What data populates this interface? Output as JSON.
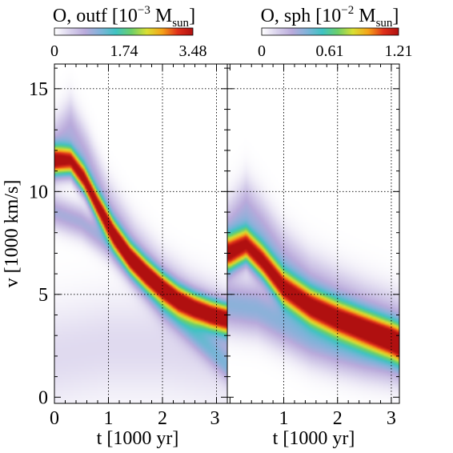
{
  "chart_data": [
    {
      "type": "heatmap",
      "title_main": "O, outf [10",
      "title_exp": "−3",
      "title_mid": " M",
      "title_sub": "sun",
      "title_end": "]",
      "colorbar_ticks": [
        "0",
        "1.74",
        "3.48"
      ],
      "colorbar_range": [
        0,
        3.48
      ],
      "xlabel": "t [1000 yr]",
      "ylabel": "v [1000 km/s]",
      "xlim": [
        0,
        3.2
      ],
      "ylim": [
        -0.3,
        16.2
      ],
      "x_ticks": [
        0,
        1,
        2,
        3
      ],
      "x_tick_labels": [
        "0",
        "1",
        "2",
        "3"
      ],
      "y_ticks": [
        0,
        5,
        10,
        15
      ],
      "y_tick_labels": [
        "0",
        "5",
        "10",
        "15"
      ],
      "grid_x": [
        1,
        2,
        3
      ],
      "grid_y": [
        5,
        10,
        15
      ],
      "ridges": [
        {
          "name": "main",
          "strength": 1.0,
          "width": 0.45,
          "points": [
            [
              0.3,
              11.5
            ],
            [
              0.55,
              10.6
            ],
            [
              0.8,
              9.3
            ],
            [
              1.1,
              7.9
            ],
            [
              1.4,
              6.8
            ],
            [
              1.7,
              6.0
            ],
            [
              2.0,
              5.3
            ],
            [
              2.3,
              4.7
            ],
            [
              2.6,
              4.3
            ],
            [
              2.9,
              4.0
            ],
            [
              3.2,
              3.8
            ]
          ]
        },
        {
          "name": "upper",
          "strength": 0.18,
          "width": 0.9,
          "points": [
            [
              0.0,
              12.0
            ],
            [
              0.3,
              13.0
            ],
            [
              0.6,
              11.5
            ],
            [
              1.0,
              9.0
            ],
            [
              1.5,
              7.0
            ],
            [
              2.0,
              5.5
            ],
            [
              2.5,
              4.5
            ],
            [
              3.0,
              3.8
            ],
            [
              3.2,
              3.5
            ]
          ]
        },
        {
          "name": "lower",
          "strength": 0.2,
          "width": 0.5,
          "points": [
            [
              0.0,
              9.0
            ],
            [
              0.5,
              8.5
            ],
            [
              1.0,
              7.5
            ],
            [
              1.5,
              6.0
            ],
            [
              2.0,
              4.5
            ],
            [
              2.5,
              3.3
            ],
            [
              3.0,
              2.0
            ],
            [
              3.2,
              1.5
            ]
          ]
        },
        {
          "name": "bottom",
          "strength": 0.06,
          "width": 1.6,
          "points": [
            [
              0.0,
              2.0
            ],
            [
              1.0,
              2.5
            ],
            [
              2.0,
              2.5
            ],
            [
              3.2,
              2.0
            ]
          ]
        }
      ]
    },
    {
      "type": "heatmap",
      "title_main": "O, sph [10",
      "title_exp": "−2",
      "title_mid": " M",
      "title_sub": "sun",
      "title_end": "]",
      "colorbar_ticks": [
        "0",
        "0.61",
        "1.21"
      ],
      "colorbar_range": [
        0,
        1.21
      ],
      "xlabel": "t [1000 yr]",
      "ylabel": "",
      "xlim": [
        -0.05,
        3.15
      ],
      "ylim": [
        -0.3,
        16.2
      ],
      "x_ticks": [
        1,
        2,
        3
      ],
      "x_tick_labels": [
        "1",
        "2",
        "3"
      ],
      "y_ticks": [
        0,
        5,
        10,
        15
      ],
      "y_tick_labels": [],
      "grid_x": [
        1,
        2,
        3
      ],
      "grid_y": [
        5,
        10,
        15
      ],
      "ridges": [
        {
          "name": "main",
          "strength": 1.0,
          "width": 0.55,
          "points": [
            [
              0.0,
              7.0
            ],
            [
              0.3,
              7.4
            ],
            [
              0.6,
              6.6
            ],
            [
              1.0,
              5.3
            ],
            [
              1.5,
              4.4
            ],
            [
              2.0,
              3.8
            ],
            [
              2.5,
              3.3
            ],
            [
              3.0,
              2.8
            ],
            [
              3.15,
              2.6
            ]
          ]
        },
        {
          "name": "upper",
          "strength": 0.2,
          "width": 1.0,
          "points": [
            [
              0.0,
              8.0
            ],
            [
              0.3,
              9.0
            ],
            [
              0.6,
              8.0
            ],
            [
              1.0,
              6.5
            ],
            [
              1.5,
              5.3
            ],
            [
              2.0,
              4.6
            ],
            [
              2.5,
              4.0
            ],
            [
              3.0,
              3.5
            ],
            [
              3.15,
              3.3
            ]
          ]
        },
        {
          "name": "lower",
          "strength": 0.25,
          "width": 0.8,
          "points": [
            [
              0.0,
              4.5
            ],
            [
              0.5,
              4.3
            ],
            [
              1.0,
              3.6
            ],
            [
              1.5,
              2.9
            ],
            [
              2.0,
              2.5
            ],
            [
              2.5,
              2.2
            ],
            [
              3.0,
              2.0
            ],
            [
              3.15,
              1.9
            ]
          ]
        }
      ]
    }
  ],
  "colors": {
    "colormap": [
      "#ffffff",
      "#d9d2ec",
      "#b9aadb",
      "#7fb3d9",
      "#3fc3c2",
      "#6ccf6a",
      "#d9df33",
      "#f5a319",
      "#e0301a",
      "#b01010"
    ],
    "grid": "#000000",
    "frame": "#000000"
  }
}
